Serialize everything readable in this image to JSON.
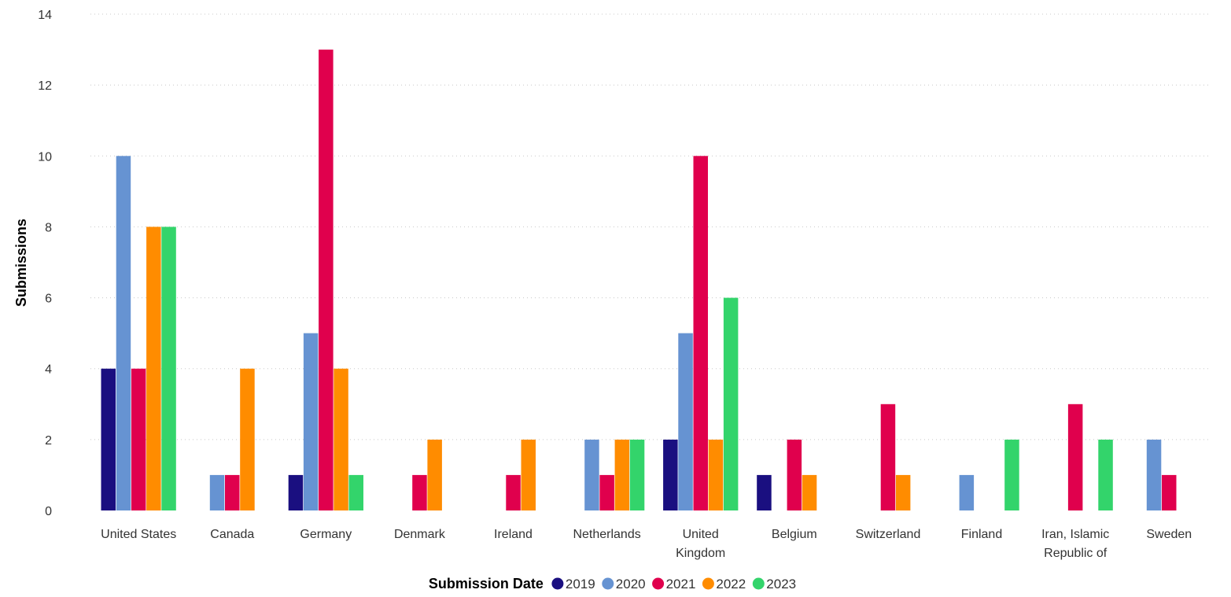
{
  "chart_data": {
    "type": "bar",
    "title": "",
    "xlabel": "",
    "ylabel": "Submissions",
    "ylim": [
      0,
      14
    ],
    "yticks": [
      0,
      2,
      4,
      6,
      8,
      10,
      12,
      14
    ],
    "grid": true,
    "legend_position": "bottom",
    "legend_title": "Submission Date",
    "categories": [
      "United States",
      "Canada",
      "Germany",
      "Denmark",
      "Ireland",
      "Netherlands",
      "United Kingdom",
      "Belgium",
      "Switzerland",
      "Finland",
      "Iran, Islamic Republic of",
      "Sweden"
    ],
    "category_label_lines": [
      [
        "United States"
      ],
      [
        "Canada"
      ],
      [
        "Germany"
      ],
      [
        "Denmark"
      ],
      [
        "Ireland"
      ],
      [
        "Netherlands"
      ],
      [
        "United",
        "Kingdom"
      ],
      [
        "Belgium"
      ],
      [
        "Switzerland"
      ],
      [
        "Finland"
      ],
      [
        "Iran, Islamic",
        "Republic of"
      ],
      [
        "Sweden"
      ]
    ],
    "series": [
      {
        "name": "2019",
        "color": "#1a0f80",
        "values": [
          4,
          0,
          1,
          0,
          0,
          0,
          2,
          1,
          0,
          0,
          0,
          0
        ]
      },
      {
        "name": "2020",
        "color": "#6693d2",
        "values": [
          10,
          1,
          5,
          0,
          0,
          2,
          5,
          0,
          0,
          1,
          0,
          2
        ]
      },
      {
        "name": "2021",
        "color": "#e0004d",
        "values": [
          4,
          1,
          13,
          1,
          1,
          1,
          10,
          2,
          3,
          0,
          3,
          1
        ]
      },
      {
        "name": "2022",
        "color": "#ff8c00",
        "values": [
          8,
          4,
          4,
          2,
          2,
          2,
          2,
          1,
          1,
          0,
          0,
          0
        ]
      },
      {
        "name": "2023",
        "color": "#33d46b",
        "values": [
          8,
          0,
          1,
          0,
          0,
          2,
          6,
          0,
          0,
          2,
          2,
          0
        ]
      }
    ]
  }
}
